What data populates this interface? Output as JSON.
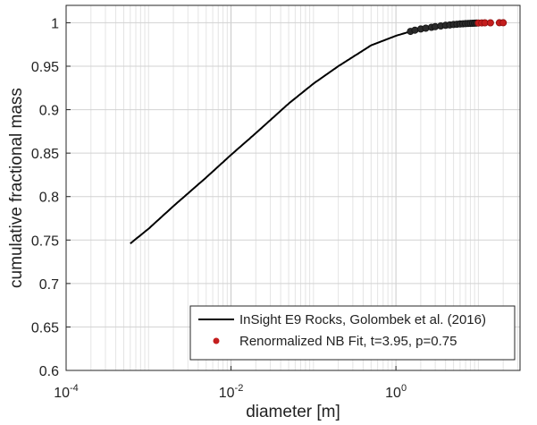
{
  "chart_data": {
    "type": "line",
    "xlabel": "diameter [m]",
    "ylabel": "cumulative fractional mass",
    "x_scale": "log",
    "xlim": [
      0.0001,
      32
    ],
    "ylim": [
      0.6,
      1.02
    ],
    "grid": true,
    "legend_position": "bottom-right",
    "x_ticks": [
      {
        "value": 0.0001,
        "base": "10",
        "exp": "-4"
      },
      {
        "value": 0.01,
        "base": "10",
        "exp": "-2"
      },
      {
        "value": 1,
        "base": "10",
        "exp": "0"
      }
    ],
    "y_ticks": [
      {
        "value": 0.6,
        "label": "0.6"
      },
      {
        "value": 0.65,
        "label": "0.65"
      },
      {
        "value": 0.7,
        "label": "0.7"
      },
      {
        "value": 0.75,
        "label": "0.75"
      },
      {
        "value": 0.8,
        "label": "0.8"
      },
      {
        "value": 0.85,
        "label": "0.85"
      },
      {
        "value": 0.9,
        "label": "0.9"
      },
      {
        "value": 0.95,
        "label": "0.95"
      },
      {
        "value": 1,
        "label": "1"
      }
    ],
    "series": [
      {
        "name": "InSight E9 Rocks, Golombek et al. (2016)",
        "kind": "line",
        "color": "#000000",
        "x": [
          0.0006,
          0.001,
          0.002,
          0.005,
          0.01,
          0.02,
          0.05,
          0.1,
          0.2,
          0.5,
          1.0,
          1.5
        ],
        "y": [
          0.746,
          0.763,
          0.789,
          0.822,
          0.848,
          0.873,
          0.907,
          0.93,
          0.95,
          0.974,
          0.985,
          0.99
        ]
      },
      {
        "name": "Renormalized NB Fit, t=3.95, p=0.75",
        "kind": "scatter",
        "color": "#c41e1e",
        "x": [
          1.5,
          1.7,
          2.0,
          2.3,
          2.7,
          3.0,
          3.5,
          4.0,
          4.5,
          5.0,
          5.5,
          6.0,
          6.5,
          7.0,
          7.5,
          8.0,
          8.5,
          9.0,
          9.5,
          10.0,
          11.0,
          12.0,
          14.0,
          18.0,
          20.0
        ],
        "y": [
          0.99,
          0.9915,
          0.9928,
          0.9938,
          0.9948,
          0.9955,
          0.9963,
          0.997,
          0.9975,
          0.998,
          0.9983,
          0.9986,
          0.9988,
          0.999,
          0.9992,
          0.9993,
          0.9994,
          0.9995,
          0.9996,
          0.9997,
          0.9998,
          0.9999,
          0.99995,
          1.0,
          1.0
        ]
      }
    ]
  }
}
